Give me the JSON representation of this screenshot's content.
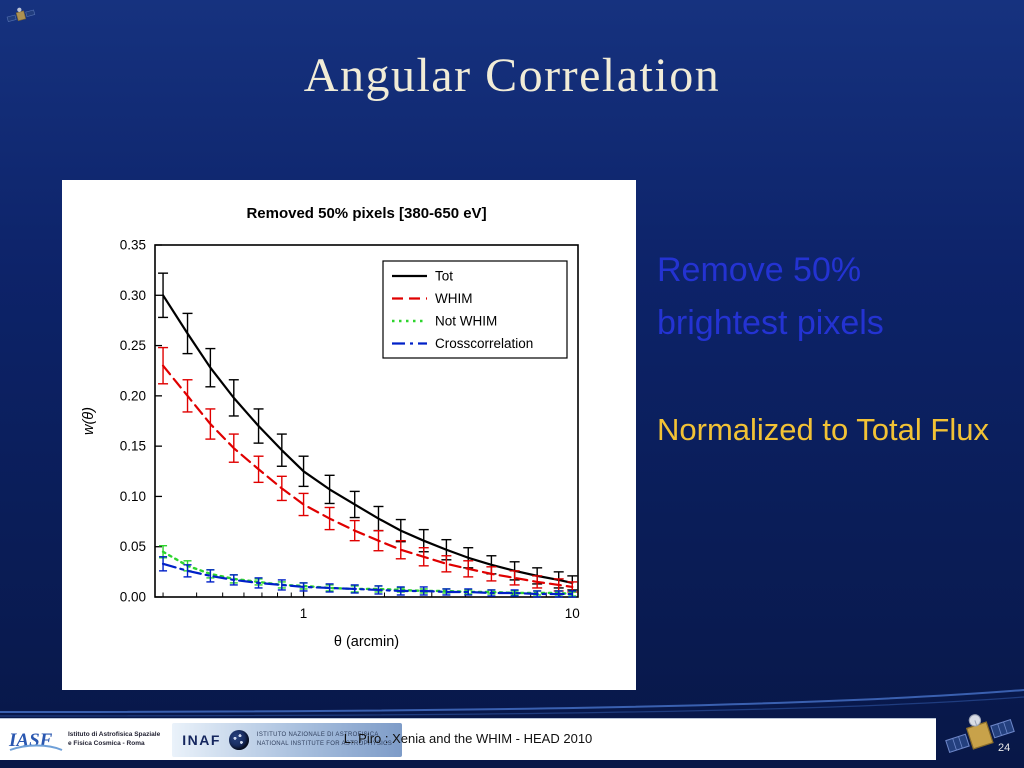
{
  "slide": {
    "title": "Angular Correlation",
    "page_number": "24"
  },
  "annotations": {
    "remove": "Remove 50%\nbrightest pixels",
    "normalized": "Normalized to Total Flux"
  },
  "footer": {
    "credit": "L. Piro : Xenia  and the WHIM -  HEAD 2010",
    "iasf_text": "Istituto di Astrofisica Spaziale\ne Fisica Cosmica - Roma",
    "inaf_acronym": "INAF",
    "inaf_caption": "ISTITUTO NAZIONALE DI ASTROFISICA\nNATIONAL INSTITUTE FOR ASTROPHYSICS"
  },
  "chart_data": {
    "type": "line",
    "title": "Removed 50% pixels [380-650 eV]",
    "xlabel": "θ (arcmin)",
    "ylabel": "w(θ)",
    "xscale": "log",
    "xlim": [
      0.28,
      10.5
    ],
    "ylim": [
      0,
      0.35
    ],
    "yticks": [
      0,
      0.05,
      0.1,
      0.15,
      0.2,
      0.25,
      0.3,
      0.35
    ],
    "xticks": [
      1,
      10
    ],
    "legend_position": "top-right",
    "grid": false,
    "x": [
      0.3,
      0.37,
      0.45,
      0.55,
      0.68,
      0.83,
      1.0,
      1.25,
      1.55,
      1.9,
      2.3,
      2.8,
      3.4,
      4.1,
      5.0,
      6.1,
      7.4,
      8.9,
      10.0
    ],
    "series": [
      {
        "name": "Tot",
        "color": "#000000",
        "style": "solid",
        "width": 2.2,
        "cap": 5,
        "values": [
          0.3,
          0.262,
          0.228,
          0.198,
          0.17,
          0.146,
          0.125,
          0.107,
          0.092,
          0.078,
          0.066,
          0.056,
          0.047,
          0.039,
          0.032,
          0.026,
          0.021,
          0.017,
          0.014
        ],
        "err": [
          0.022,
          0.02,
          0.019,
          0.018,
          0.017,
          0.016,
          0.015,
          0.014,
          0.013,
          0.012,
          0.011,
          0.011,
          0.01,
          0.01,
          0.009,
          0.009,
          0.008,
          0.008,
          0.007
        ]
      },
      {
        "name": "WHIM",
        "color": "#e00000",
        "style": "dashed",
        "width": 2.2,
        "cap": 5,
        "values": [
          0.23,
          0.2,
          0.172,
          0.148,
          0.127,
          0.108,
          0.092,
          0.078,
          0.066,
          0.056,
          0.047,
          0.04,
          0.033,
          0.028,
          0.023,
          0.019,
          0.015,
          0.012,
          0.01
        ],
        "err": [
          0.018,
          0.016,
          0.015,
          0.014,
          0.013,
          0.012,
          0.011,
          0.011,
          0.01,
          0.01,
          0.009,
          0.009,
          0.008,
          0.008,
          0.007,
          0.007,
          0.006,
          0.006,
          0.005
        ]
      },
      {
        "name": "Not WHIM",
        "color": "#2ed42e",
        "style": "dotted",
        "width": 2.4,
        "cap": 4,
        "values": [
          0.045,
          0.031,
          0.023,
          0.018,
          0.015,
          0.012,
          0.011,
          0.009,
          0.008,
          0.008,
          0.007,
          0.006,
          0.006,
          0.005,
          0.005,
          0.004,
          0.004,
          0.004,
          0.003
        ],
        "err": [
          0.006,
          0.005,
          0.004,
          0.004,
          0.003,
          0.003,
          0.003,
          0.003,
          0.003,
          0.003,
          0.002,
          0.002,
          0.002,
          0.002,
          0.002,
          0.002,
          0.002,
          0.002,
          0.002
        ]
      },
      {
        "name": "Crosscorrelation",
        "color": "#0020c8",
        "style": "dashdot",
        "width": 2.2,
        "cap": 4,
        "values": [
          0.033,
          0.026,
          0.021,
          0.017,
          0.014,
          0.012,
          0.01,
          0.009,
          0.008,
          0.007,
          0.006,
          0.006,
          0.005,
          0.005,
          0.004,
          0.004,
          0.003,
          0.003,
          0.003
        ],
        "err": [
          0.007,
          0.006,
          0.006,
          0.005,
          0.005,
          0.005,
          0.004,
          0.004,
          0.004,
          0.004,
          0.004,
          0.004,
          0.003,
          0.003,
          0.003,
          0.003,
          0.003,
          0.003,
          0.003
        ]
      }
    ]
  }
}
